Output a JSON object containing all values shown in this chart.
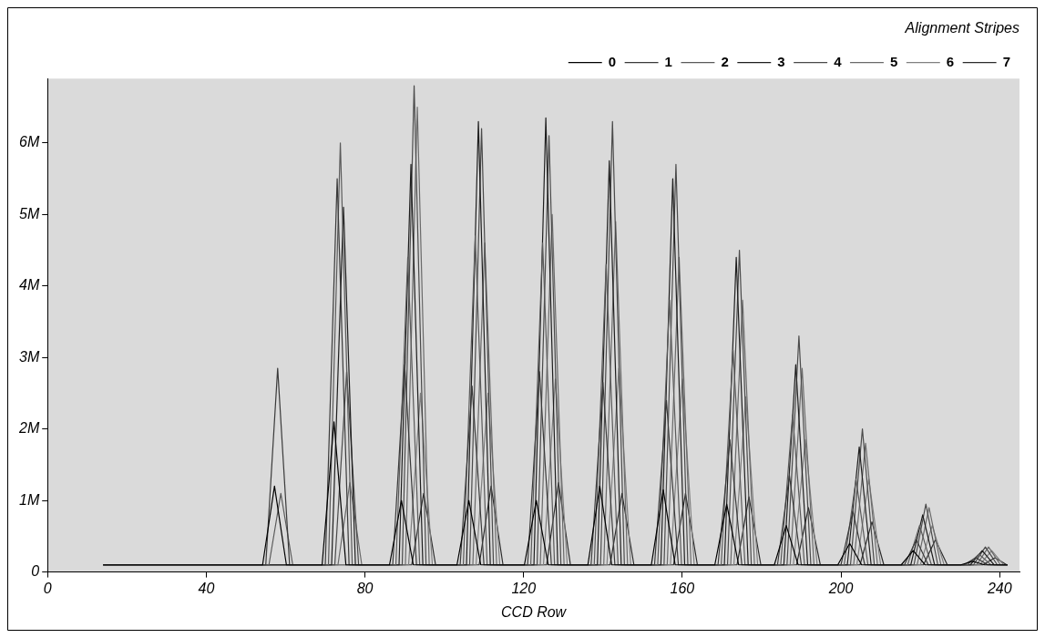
{
  "chart_data": {
    "type": "line",
    "title": "Alignment Stripes",
    "xlabel": "CCD Row",
    "xlim": [
      0,
      245
    ],
    "xticks": [
      0,
      40,
      80,
      120,
      160,
      200,
      240
    ],
    "ylim": [
      0,
      6900000
    ],
    "yticks": [
      0,
      {
        "value": 1000000,
        "label": "1M"
      },
      {
        "value": 2000000,
        "label": "2M"
      },
      {
        "value": 3000000,
        "label": "3M"
      },
      {
        "value": 4000000,
        "label": "4M"
      },
      {
        "value": 5000000,
        "label": "5M"
      },
      {
        "value": 6000000,
        "label": "6M"
      }
    ],
    "grid": false,
    "legend": "top right",
    "marker": "none",
    "line_style": "solid",
    "series": [
      {
        "name": "0",
        "color": "#000000",
        "x": [
          14,
          54.2,
          55.7,
          57.2,
          58.7,
          60.2,
          69.2,
          70.7,
          72.2,
          73.7,
          75.2,
          86.2,
          87.7,
          89.2,
          90.7,
          92.2,
          103.2,
          104.7,
          106.2,
          107.7,
          109.2,
          120.2,
          121.7,
          123.2,
          124.7,
          126.2,
          136.2,
          137.7,
          139.2,
          140.7,
          142.2,
          152.2,
          153.7,
          155.2,
          156.7,
          158.2,
          168.2,
          169.7,
          171.2,
          172.7,
          174.2,
          183.2,
          184.7,
          186.2,
          187.7,
          189.2,
          199.2,
          200.7,
          202.2,
          203.7,
          205.2,
          215.2,
          216.7,
          218.2,
          219.7,
          221.2,
          230.2,
          231.7,
          233.2,
          234.7,
          236.2,
          242
        ],
        "values": [
          100000,
          100000,
          650000,
          1200000,
          650000,
          100000,
          100000,
          1100000,
          2100000,
          1100000,
          100000,
          100000,
          550000,
          1000000,
          550000,
          100000,
          100000,
          550000,
          1000000,
          550000,
          100000,
          100000,
          550000,
          1000000,
          550000,
          100000,
          100000,
          650000,
          1200000,
          650000,
          100000,
          100000,
          625000,
          1150000,
          625000,
          100000,
          100000,
          525000,
          950000,
          525000,
          100000,
          100000,
          375000,
          650000,
          375000,
          100000,
          100000,
          250000,
          400000,
          250000,
          100000,
          100000,
          200000,
          300000,
          200000,
          100000,
          100000,
          125000,
          150000,
          125000,
          100000,
          100000
        ]
      },
      {
        "name": "1",
        "color": "#3a3a3a",
        "x": [
          14,
          55,
          56.5,
          58,
          59.5,
          61,
          70,
          71.5,
          73,
          74.5,
          76,
          87,
          88.5,
          90,
          91.5,
          93,
          104,
          105.5,
          107,
          108.5,
          110,
          121,
          122.5,
          124,
          125.5,
          127,
          137,
          138.5,
          140,
          141.5,
          143,
          153,
          154.5,
          156,
          157.5,
          159,
          169,
          170.5,
          172,
          173.5,
          175,
          184,
          185.5,
          187,
          188.5,
          190,
          200,
          201.5,
          203,
          204.5,
          206,
          216,
          217.5,
          219,
          220.5,
          222,
          231,
          232.5,
          234,
          235.5,
          237,
          242
        ],
        "values": [
          100000,
          100000,
          1475000,
          2850000,
          1475000,
          100000,
          100000,
          2800000,
          5500000,
          2800000,
          100000,
          100000,
          1500000,
          2900000,
          1500000,
          100000,
          100000,
          1350000,
          2600000,
          1350000,
          100000,
          100000,
          1450000,
          2800000,
          1450000,
          100000,
          100000,
          1375000,
          2650000,
          1375000,
          100000,
          100000,
          1250000,
          2400000,
          1250000,
          100000,
          100000,
          975000,
          1850000,
          975000,
          100000,
          100000,
          725000,
          1350000,
          725000,
          100000,
          100000,
          475000,
          850000,
          475000,
          100000,
          100000,
          275000,
          450000,
          275000,
          100000,
          100000,
          150000,
          200000,
          150000,
          100000,
          100000
        ]
      },
      {
        "name": "2",
        "color": "#5a5a5a",
        "x": [
          14,
          55.8,
          57.3,
          58.8,
          60.3,
          61.8,
          70.8,
          72.3,
          73.8,
          75.3,
          76.8,
          87.8,
          89.3,
          90.8,
          92.3,
          93.8,
          104.8,
          106.3,
          107.8,
          109.3,
          110.8,
          121.8,
          123.3,
          124.8,
          126.3,
          127.8,
          137.8,
          139.3,
          140.8,
          142.3,
          143.8,
          153.8,
          155.3,
          156.8,
          158.3,
          159.8,
          169.8,
          171.3,
          172.8,
          174.3,
          175.8,
          184.8,
          186.3,
          187.8,
          189.3,
          190.8,
          200.8,
          202.3,
          203.8,
          205.3,
          206.8,
          216.8,
          218.3,
          219.8,
          221.3,
          222.8,
          231.8,
          233.3,
          234.8,
          236.3,
          237.8,
          242
        ],
        "values": [
          100000,
          100000,
          600000,
          1100000,
          600000,
          100000,
          100000,
          3050000,
          6000000,
          3050000,
          100000,
          100000,
          2250000,
          4400000,
          2250000,
          100000,
          100000,
          2400000,
          4700000,
          2400000,
          100000,
          100000,
          2350000,
          4600000,
          2350000,
          100000,
          100000,
          2200000,
          4300000,
          2200000,
          100000,
          100000,
          1950000,
          3800000,
          1950000,
          100000,
          100000,
          1600000,
          3100000,
          1600000,
          100000,
          100000,
          1150000,
          2200000,
          1150000,
          100000,
          100000,
          700000,
          1300000,
          700000,
          100000,
          100000,
          375000,
          650000,
          375000,
          100000,
          100000,
          175000,
          250000,
          175000,
          100000,
          100000
        ]
      },
      {
        "name": "3",
        "color": "#1e1e1e",
        "x": [
          14,
          71.6,
          73.1,
          74.6,
          76.1,
          77.6,
          88.6,
          90.1,
          91.6,
          93.1,
          94.6,
          105.6,
          107.1,
          108.6,
          110.1,
          111.6,
          122.6,
          124.1,
          125.6,
          127.1,
          128.6,
          138.6,
          140.1,
          141.6,
          143.1,
          144.6,
          154.6,
          156.1,
          157.6,
          159.1,
          160.6,
          170.6,
          172.1,
          173.6,
          175.1,
          176.6,
          185.6,
          187.1,
          188.6,
          190.1,
          191.6,
          201.6,
          203.1,
          204.6,
          206.1,
          207.6,
          217.6,
          219.1,
          220.6,
          222.1,
          223.6,
          232.6,
          234.1,
          235.6,
          237.1,
          238.6,
          242
        ],
        "values": [
          100000,
          100000,
          2600000,
          5100000,
          2600000,
          100000,
          100000,
          2900000,
          5700000,
          2900000,
          100000,
          100000,
          3200000,
          6300000,
          3200000,
          100000,
          100000,
          3225000,
          6350000,
          3225000,
          100000,
          100000,
          2925000,
          5750000,
          2925000,
          100000,
          100000,
          2800000,
          5500000,
          2800000,
          100000,
          100000,
          2250000,
          4400000,
          2250000,
          100000,
          100000,
          1500000,
          2900000,
          1500000,
          100000,
          100000,
          925000,
          1750000,
          925000,
          100000,
          100000,
          450000,
          800000,
          450000,
          100000,
          100000,
          200000,
          300000,
          200000,
          100000,
          100000
        ]
      },
      {
        "name": "4",
        "color": "#4a4a4a",
        "x": [
          14,
          72.4,
          73.9,
          75.4,
          76.9,
          78.4,
          89.4,
          90.9,
          92.4,
          93.9,
          95.4,
          106.4,
          107.9,
          109.4,
          110.9,
          112.4,
          123.4,
          124.9,
          126.4,
          127.9,
          129.4,
          139.4,
          140.9,
          142.4,
          143.9,
          145.4,
          155.4,
          156.9,
          158.4,
          159.9,
          161.4,
          171.4,
          172.9,
          174.4,
          175.9,
          177.4,
          186.4,
          187.9,
          189.4,
          190.9,
          192.4,
          202.4,
          203.9,
          205.4,
          206.9,
          208.4,
          218.4,
          219.9,
          221.4,
          222.9,
          224.4,
          233.4,
          234.9,
          236.4,
          237.9,
          239.4,
          242
        ],
        "values": [
          100000,
          100000,
          1450000,
          2800000,
          1450000,
          100000,
          100000,
          3450000,
          6800000,
          3450000,
          100000,
          100000,
          3150000,
          6200000,
          3150000,
          100000,
          100000,
          3100000,
          6100000,
          3100000,
          100000,
          100000,
          3200000,
          6300000,
          3200000,
          100000,
          100000,
          2900000,
          5700000,
          2900000,
          100000,
          100000,
          2300000,
          4500000,
          2300000,
          100000,
          100000,
          1700000,
          3300000,
          1700000,
          100000,
          100000,
          1050000,
          2000000,
          1050000,
          100000,
          100000,
          525000,
          950000,
          525000,
          100000,
          100000,
          225000,
          350000,
          225000,
          100000,
          100000
        ]
      },
      {
        "name": "5",
        "color": "#6a6a6a",
        "x": [
          14,
          73.2,
          74.7,
          76.2,
          77.7,
          79.2,
          90.2,
          91.7,
          93.2,
          94.7,
          96.2,
          107.2,
          108.7,
          110.2,
          111.7,
          113.2,
          124.2,
          125.7,
          127.2,
          128.7,
          130.2,
          140.2,
          141.7,
          143.2,
          144.7,
          146.2,
          156.2,
          157.7,
          159.2,
          160.7,
          162.2,
          172.2,
          173.7,
          175.2,
          176.7,
          178.2,
          187.2,
          188.7,
          190.2,
          191.7,
          193.2,
          203.2,
          204.7,
          206.2,
          207.7,
          209.2,
          219.2,
          220.7,
          222.2,
          223.7,
          225.2,
          234.2,
          235.7,
          237.2,
          238.7,
          240.2,
          242
        ],
        "values": [
          100000,
          100000,
          675000,
          1250000,
          675000,
          100000,
          100000,
          3300000,
          6500000,
          3300000,
          100000,
          100000,
          2350000,
          4600000,
          2350000,
          100000,
          100000,
          2550000,
          5000000,
          2550000,
          100000,
          100000,
          2500000,
          4900000,
          2500000,
          100000,
          100000,
          2250000,
          4400000,
          2250000,
          100000,
          100000,
          1950000,
          3800000,
          1950000,
          100000,
          100000,
          1475000,
          2850000,
          1475000,
          100000,
          100000,
          950000,
          1800000,
          950000,
          100000,
          100000,
          500000,
          900000,
          500000,
          100000,
          100000,
          225000,
          350000,
          225000,
          100000,
          100000
        ]
      },
      {
        "name": "6",
        "color": "#808080",
        "x": [
          14,
          91,
          92.5,
          94,
          95.5,
          97,
          108,
          109.5,
          111,
          112.5,
          114,
          125,
          126.5,
          128,
          129.5,
          131,
          141,
          142.5,
          144,
          145.5,
          147,
          157,
          158.5,
          160,
          161.5,
          163,
          173,
          174.5,
          176,
          177.5,
          179,
          188,
          189.5,
          191,
          192.5,
          194,
          204,
          205.5,
          207,
          208.5,
          210,
          220,
          221.5,
          223,
          224.5,
          226,
          235,
          236.5,
          238,
          239.5,
          241,
          242
        ],
        "values": [
          100000,
          100000,
          1300000,
          2500000,
          1300000,
          100000,
          100000,
          1300000,
          2500000,
          1300000,
          100000,
          100000,
          1400000,
          2700000,
          1400000,
          100000,
          100000,
          1475000,
          2850000,
          1475000,
          100000,
          100000,
          1400000,
          2700000,
          1400000,
          100000,
          100000,
          1275000,
          2450000,
          1275000,
          100000,
          100000,
          975000,
          1850000,
          975000,
          100000,
          100000,
          700000,
          1300000,
          700000,
          100000,
          100000,
          375000,
          650000,
          375000,
          100000,
          100000,
          200000,
          300000,
          200000,
          100000,
          100000
        ]
      },
      {
        "name": "7",
        "color": "#2c2c2c",
        "x": [
          14,
          91.8,
          93.3,
          94.8,
          96.3,
          97.8,
          108.8,
          110.3,
          111.8,
          113.3,
          114.8,
          125.8,
          127.3,
          128.8,
          130.3,
          131.8,
          141.8,
          143.3,
          144.8,
          146.3,
          147.8,
          157.8,
          159.3,
          160.8,
          162.3,
          163.8,
          173.8,
          175.3,
          176.8,
          178.3,
          179.8,
          188.8,
          190.3,
          191.8,
          193.3,
          194.8,
          204.8,
          206.3,
          207.8,
          209.3,
          210.8,
          220.8,
          222.3,
          223.8,
          225.3,
          226.8,
          235.8,
          237.3,
          238.8,
          240.3,
          241.8,
          242
        ],
        "values": [
          100000,
          100000,
          600000,
          1100000,
          600000,
          100000,
          100000,
          650000,
          1200000,
          650000,
          100000,
          100000,
          675000,
          1250000,
          675000,
          100000,
          100000,
          600000,
          1100000,
          600000,
          100000,
          100000,
          600000,
          1100000,
          600000,
          100000,
          100000,
          575000,
          1050000,
          575000,
          100000,
          100000,
          500000,
          900000,
          500000,
          100000,
          100000,
          400000,
          700000,
          400000,
          100000,
          100000,
          275000,
          450000,
          275000,
          100000,
          100000,
          150000,
          200000,
          150000,
          100000,
          100000
        ]
      }
    ]
  }
}
